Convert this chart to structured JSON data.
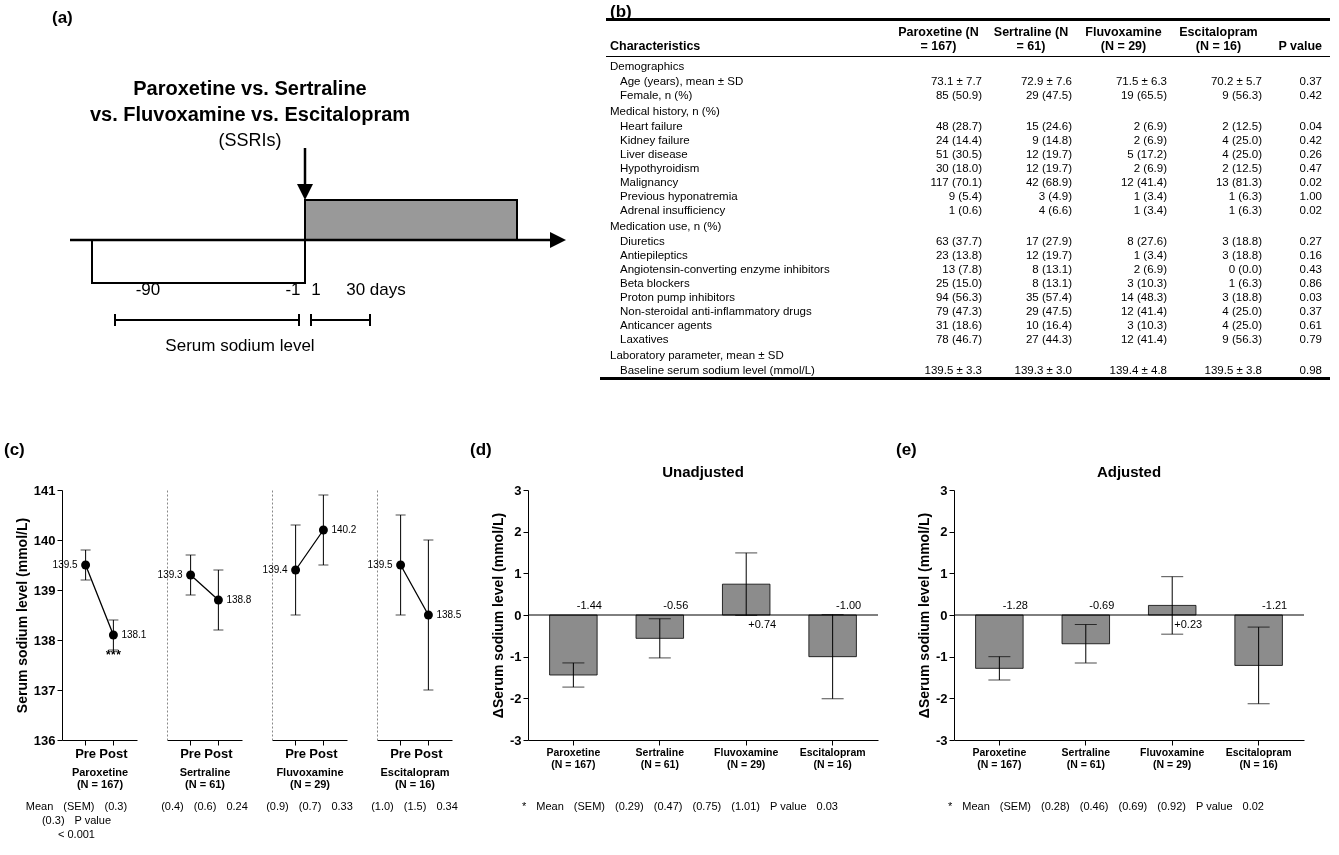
{
  "chart_data": [
    {
      "type": "other",
      "title": "(a)",
      "annotations": [
        "Paroxetine vs. Sertraline",
        "vs. Fluvoxamine vs. Escitalopram",
        "(SSRIs)",
        "-90",
        "-1",
        "1",
        "30 days",
        "Serum sodium level"
      ]
    },
    {
      "type": "other",
      "title": "(b)",
      "categories": [
        "Characteristics",
        "Paroxetine (N = 167)",
        "Sertraline (N = 61)",
        "Fluvoxamine (N = 29)",
        "Escitalopram (N = 16)",
        "P value"
      ]
    },
    {
      "type": "other",
      "title": "Demographics",
      "y_categories": [
        "Age (years), mean ± SD",
        "Female, n (%)"
      ],
      "annotations": [
        "73.1 ± 7.7",
        "72.9 ± 7.6",
        "71.5 ± 6.3",
        "70.2 ± 5.7",
        "0.37",
        "85 (50.9)",
        "29 (47.5)",
        "19 (65.5)",
        "9 (56.3)",
        "0.42"
      ]
    },
    {
      "type": "other",
      "title": "Medical history, n (%)",
      "y_categories": [
        "Heart failure",
        "Kidney failure",
        "Liver disease",
        "Hypothyroidism",
        "Malignancy",
        "Previous hyponatremia",
        "Adrenal insufficiency"
      ],
      "annotations": [
        "48 (28.7)",
        "15 (24.6)",
        "2 (6.9)",
        "2 (12.5)",
        "0.04",
        "24 (14.4)",
        "9 (14.8)",
        "2 (6.9)",
        "4 (25.0)",
        "0.42",
        "51 (30.5)",
        "12 (19.7)",
        "5 (17.2)",
        "4 (25.0)",
        "0.26",
        "30 (18.0)",
        "12 (19.7)",
        "2 (6.9)",
        "2 (12.5)",
        "0.47",
        "117 (70.1)",
        "42 (68.9)",
        "12 (41.4)",
        "13 (81.3)",
        "0.02",
        "9 (5.4)",
        "3 (4.9)",
        "1 (3.4)",
        "1 (6.3)",
        "1.00",
        "1 (0.6)",
        "4 (6.6)",
        "1 (3.4)",
        "1 (6.3)",
        "0.02"
      ]
    },
    {
      "type": "other",
      "title": "Medication use, n (%)",
      "y_categories": [
        "Diuretics",
        "Antiepileptics",
        "Angiotensin-converting enzyme inhibitors",
        "Beta blockers",
        "Proton pump inhibitors",
        "Non-steroidal anti-inflammatory drugs",
        "Anticancer agents",
        "Laxatives"
      ],
      "annotations": [
        "63 (37.7)",
        "17 (27.9)",
        "8 (27.6)",
        "3 (18.8)",
        "0.27",
        "23 (13.8)",
        "12 (19.7)",
        "1 (3.4)",
        "3 (18.8)",
        "0.16",
        "13 (7.8)",
        "8 (13.1)",
        "2 (6.9)",
        "0 (0.0)",
        "0.43",
        "25 (15.0)",
        "8 (13.1)",
        "3 (10.3)",
        "1 (6.3)",
        "0.86",
        "94 (56.3)",
        "35 (57.4)",
        "14 (48.3)",
        "3 (18.8)",
        "0.03",
        "79 (47.3)",
        "29 (47.5)",
        "12 (41.4)",
        "4 (25.0)",
        "0.37",
        "31 (18.6)",
        "10 (16.4)",
        "3 (10.3)",
        "4 (25.0)",
        "0.61",
        "78 (46.7)",
        "27 (44.3)",
        "12 (41.4)",
        "9 (56.3)",
        "0.79"
      ]
    },
    {
      "type": "other",
      "title": "Laboratory parameter, mean ± SD",
      "y_categories": [
        "Baseline serum sodium level (mmol/L)"
      ],
      "annotations": [
        "139.5 ± 3.3",
        "139.3 ± 3.0",
        "139.4 ± 4.8",
        "139.5 ± 3.8",
        "0.98"
      ]
    },
    {
      "type": "line",
      "title": "(c)",
      "xlabel": "Paroxetine (N = 167)",
      "ylabel": "Serum sodium level (mmol/L)",
      "categories": [
        "Pre",
        "Post"
      ],
      "values": [
        139.5,
        138.1
      ],
      "errors": [
        0.3,
        0.3
      ],
      "color": "#000000",
      "marker": "circle",
      "ylim": [
        136,
        141
      ],
      "yticks": [
        136,
        137,
        138,
        139,
        140,
        141
      ],
      "grid": false,
      "data_labels": true,
      "annotations": [
        {
          "text": "***",
          "x": "Post",
          "y": 138.1
        },
        "Mean",
        "(SEM)",
        "(0.3)",
        "(0.3)",
        "P value",
        "< 0.001"
      ]
    },
    {
      "type": "line",
      "xlabel": "Sertraline (N = 61)",
      "categories": [
        "Pre",
        "Post"
      ],
      "values": [
        139.3,
        138.8
      ],
      "errors": [
        0.4,
        0.6
      ],
      "color": "#000000",
      "marker": "circle",
      "ylim": [
        136,
        141
      ],
      "yticks": [
        136,
        137,
        138,
        139,
        140,
        141
      ],
      "grid": false,
      "tick_labels": "x",
      "data_labels": true,
      "annotations": [
        "(0.4)",
        "(0.6)",
        "0.24"
      ]
    },
    {
      "type": "line",
      "xlabel": "Fluvoxamine (N = 29)",
      "categories": [
        "Pre",
        "Post"
      ],
      "values": [
        139.4,
        140.2
      ],
      "errors": [
        0.9,
        0.7
      ],
      "color": "#000000",
      "marker": "circle",
      "ylim": [
        136,
        141
      ],
      "yticks": [
        136,
        137,
        138,
        139,
        140,
        141
      ],
      "grid": false,
      "tick_labels": "x",
      "data_labels": true,
      "annotations": [
        "(0.9)",
        "(0.7)",
        "0.33"
      ]
    },
    {
      "type": "line",
      "xlabel": "Escitalopram (N = 16)",
      "categories": [
        "Pre",
        "Post"
      ],
      "values": [
        139.5,
        138.5
      ],
      "errors": [
        1.0,
        1.5
      ],
      "color": "#000000",
      "marker": "circle",
      "ylim": [
        136,
        141
      ],
      "yticks": [
        136,
        137,
        138,
        139,
        140,
        141
      ],
      "grid": false,
      "tick_labels": "x",
      "data_labels": true,
      "annotations": [
        "(1.0)",
        "(1.5)",
        "0.34"
      ]
    },
    {
      "type": "bar",
      "title": "(d)",
      "subtitle": "Unadjusted",
      "ylabel": "ΔSerum sodium level (mmol/L)",
      "categories": [
        "Paroxetine (N = 167)",
        "Sertraline (N = 61)",
        "Fluvoxamine (N = 29)",
        "Escitalopram (N = 16)"
      ],
      "values": [
        -1.44,
        -0.56,
        0.74,
        -1.0
      ],
      "errors": [
        0.29,
        0.47,
        0.75,
        1.01
      ],
      "color": "#8c8c8c",
      "ylim": [
        -3,
        3
      ],
      "yticks": [
        -3,
        -2,
        -1,
        0,
        1,
        2,
        3
      ],
      "grid": false,
      "value_labels": [
        "-1.44",
        "-0.56",
        "+0.74",
        "-1.00"
      ],
      "ref_lines": [
        {
          "axis": "y",
          "value": 0
        }
      ],
      "annotations": [
        "*",
        "Mean",
        "(SEM)",
        "(0.29)",
        "(0.47)",
        "(0.75)",
        "(1.01)",
        "P value",
        "0.03"
      ]
    },
    {
      "type": "bar",
      "title": "(e)",
      "subtitle": "Adjusted",
      "ylabel": "ΔSerum sodium level (mmol/L)",
      "categories": [
        "Paroxetine (N = 167)",
        "Sertraline (N = 61)",
        "Fluvoxamine (N = 29)",
        "Escitalopram (N = 16)"
      ],
      "values": [
        -1.28,
        -0.69,
        0.23,
        -1.21
      ],
      "errors": [
        0.28,
        0.46,
        0.69,
        0.92
      ],
      "color": "#8c8c8c",
      "ylim": [
        -3,
        3
      ],
      "yticks": [
        -3,
        -2,
        -1,
        0,
        1,
        2,
        3
      ],
      "grid": false,
      "value_labels": [
        "-1.28",
        "-0.69",
        "+0.23",
        "-1.21"
      ],
      "ref_lines": [
        {
          "axis": "y",
          "value": 0
        }
      ],
      "annotations": [
        "*",
        "Mean",
        "(SEM)",
        "(0.28)",
        "(0.46)",
        "(0.69)",
        "(0.92)",
        "P value",
        "0.02"
      ]
    }
  ]
}
